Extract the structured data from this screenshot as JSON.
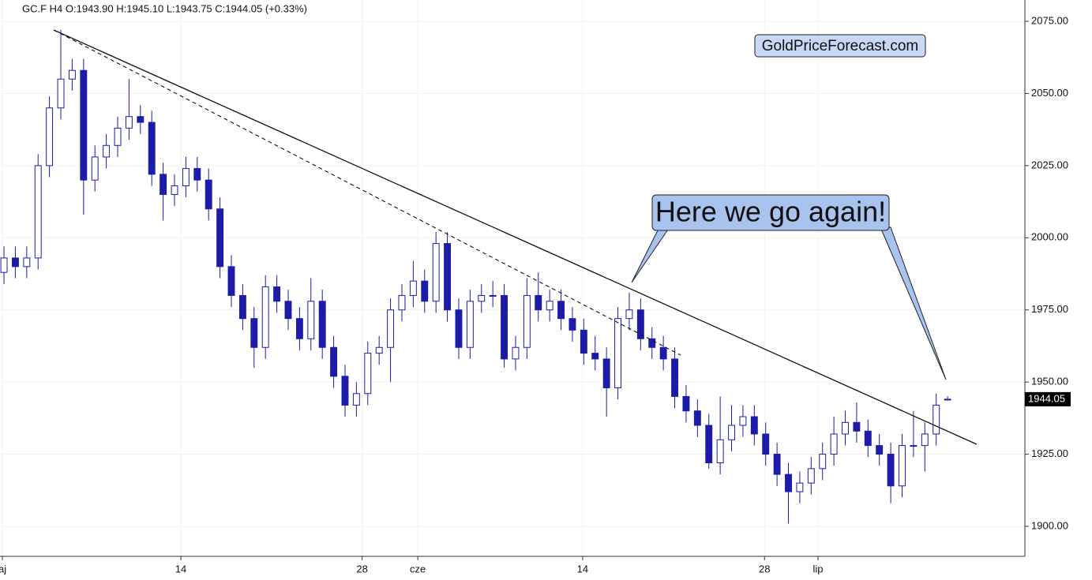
{
  "chart_data": {
    "type": "candlestick",
    "title": "GC.F  H4  O:1943.90  H:1945.10  L:1943.75  C:1944.05  (+0.33%)",
    "watermark": "GoldPriceForecast.com",
    "annotation": "Here we go again!",
    "color": "#1c1ca8",
    "grid": true,
    "categories": [
      null,
      null,
      null,
      null,
      null,
      null,
      null,
      null,
      null,
      null,
      null,
      null,
      null,
      null,
      null,
      null,
      null,
      null,
      null,
      null,
      null,
      null,
      null,
      null,
      null,
      null,
      null,
      null,
      null,
      null,
      null,
      null,
      null,
      null,
      null,
      null,
      null,
      null,
      null,
      null,
      null,
      null,
      null,
      null,
      null,
      null,
      null,
      null,
      null,
      null,
      null,
      null,
      null,
      null,
      null,
      null,
      null,
      null,
      null,
      null,
      null,
      null,
      null,
      null,
      null,
      null,
      null,
      null,
      null,
      null,
      null,
      null,
      null,
      null,
      null,
      null,
      null,
      null,
      null,
      null,
      null,
      null,
      null,
      null
    ],
    "open": [
      1988,
      1993,
      1990,
      1993,
      2025,
      2045,
      2055,
      2058,
      2020,
      2028,
      2032,
      2038,
      2042,
      2040,
      2022,
      2015,
      2018,
      2024,
      2020,
      2010,
      1990,
      1980,
      1972,
      1962,
      1983,
      1978,
      1972,
      1965,
      1978,
      1962,
      1952,
      1942,
      1946,
      1960,
      1962,
      1975,
      1980,
      1985,
      1978,
      1998,
      1975,
      1962,
      1978,
      1980,
      1980,
      1958,
      1962,
      1980,
      1975,
      1978,
      1972,
      1968,
      1960,
      1958,
      1948,
      1972,
      1975,
      1965,
      1962,
      1958,
      1945,
      1940,
      1935,
      1922,
      1930,
      1935,
      1938,
      1932,
      1925,
      1918,
      1912,
      1915,
      1920,
      1925,
      1932,
      1936,
      1933,
      1928,
      1925,
      1914,
      1928,
      1928,
      1932,
      1943.9
    ],
    "high": [
      1997,
      1997,
      1997,
      2029,
      2049,
      2072,
      2062,
      2062,
      2032,
      2036,
      2042,
      2055,
      2046,
      2044,
      2026,
      2022,
      2028,
      2028,
      2024,
      2014,
      1994,
      1984,
      1976,
      1987,
      1987,
      1982,
      1976,
      1986,
      1982,
      1966,
      1956,
      1950,
      1964,
      1966,
      1979,
      1984,
      1992,
      1989,
      2002,
      2002,
      1979,
      1982,
      1984,
      1985,
      1984,
      1966,
      1986,
      1988,
      1982,
      1982,
      1976,
      1972,
      1966,
      1962,
      1976,
      1981,
      1979,
      1969,
      1966,
      1962,
      1949,
      1944,
      1939,
      1945,
      1942,
      1942,
      1942,
      1936,
      1929,
      1922,
      1919,
      1924,
      1929,
      1938,
      1940,
      1943,
      1937,
      1932,
      1929,
      1932,
      1940,
      1936,
      1946,
      1945.1
    ],
    "low": [
      1984,
      1986,
      1986,
      1989,
      2021,
      2041,
      2051,
      2008,
      2016,
      2024,
      2028,
      2034,
      2036,
      2018,
      2006,
      2011,
      2014,
      2016,
      2006,
      1986,
      1976,
      1968,
      1955,
      1958,
      1974,
      1968,
      1961,
      1961,
      1958,
      1948,
      1938,
      1938,
      1942,
      1956,
      1950,
      1971,
      1976,
      1974,
      1974,
      1971,
      1958,
      1958,
      1974,
      1976,
      1955,
      1954,
      1958,
      1971,
      1971,
      1968,
      1964,
      1956,
      1954,
      1938,
      1944,
      1968,
      1961,
      1958,
      1954,
      1941,
      1936,
      1931,
      1920,
      1918,
      1926,
      1931,
      1928,
      1921,
      1914,
      1901,
      1908,
      1911,
      1916,
      1921,
      1928,
      1929,
      1924,
      1921,
      1908,
      1910,
      1924,
      1919,
      1928,
      1943.75
    ],
    "close": [
      1993,
      1990,
      1993,
      2025,
      2045,
      2055,
      2058,
      2020,
      2028,
      2032,
      2038,
      2042,
      2040,
      2022,
      2015,
      2018,
      2024,
      2020,
      2010,
      1990,
      1980,
      1972,
      1962,
      1983,
      1978,
      1972,
      1965,
      1978,
      1962,
      1952,
      1942,
      1946,
      1960,
      1962,
      1975,
      1980,
      1985,
      1978,
      1998,
      1975,
      1962,
      1978,
      1980,
      1980,
      1958,
      1962,
      1980,
      1975,
      1978,
      1972,
      1968,
      1960,
      1958,
      1948,
      1972,
      1975,
      1965,
      1962,
      1958,
      1945,
      1940,
      1935,
      1922,
      1930,
      1935,
      1938,
      1932,
      1925,
      1918,
      1912,
      1915,
      1920,
      1925,
      1932,
      1936,
      1933,
      1928,
      1925,
      1914,
      1928,
      1928,
      1932,
      1942,
      1944.05
    ],
    "last_price": 1944.05,
    "xlim": [
      -0.35,
      89.8
    ],
    "xticks": [
      {
        "value": -0.14,
        "label": "aj"
      },
      {
        "value": 15.56,
        "label": "14"
      },
      {
        "value": 31.5,
        "label": "28"
      },
      {
        "value": 36.4,
        "label": "cze"
      },
      {
        "value": 50.9,
        "label": "14"
      },
      {
        "value": 66.9,
        "label": "28"
      },
      {
        "value": 71.6,
        "label": "lip"
      }
    ],
    "ylim": [
      1889.6,
      2082.4
    ],
    "yticks": [
      {
        "value": 1900,
        "label": "1900.00"
      },
      {
        "value": 1925,
        "label": "1925.00"
      },
      {
        "value": 1950,
        "label": "1950.00"
      },
      {
        "value": 1975,
        "label": "1975.00"
      },
      {
        "value": 2000,
        "label": "2000.00"
      },
      {
        "value": 2025,
        "label": "2025.00"
      },
      {
        "value": 2050,
        "label": "2050.00"
      },
      {
        "value": 2075,
        "label": "2075.00"
      }
    ]
  }
}
